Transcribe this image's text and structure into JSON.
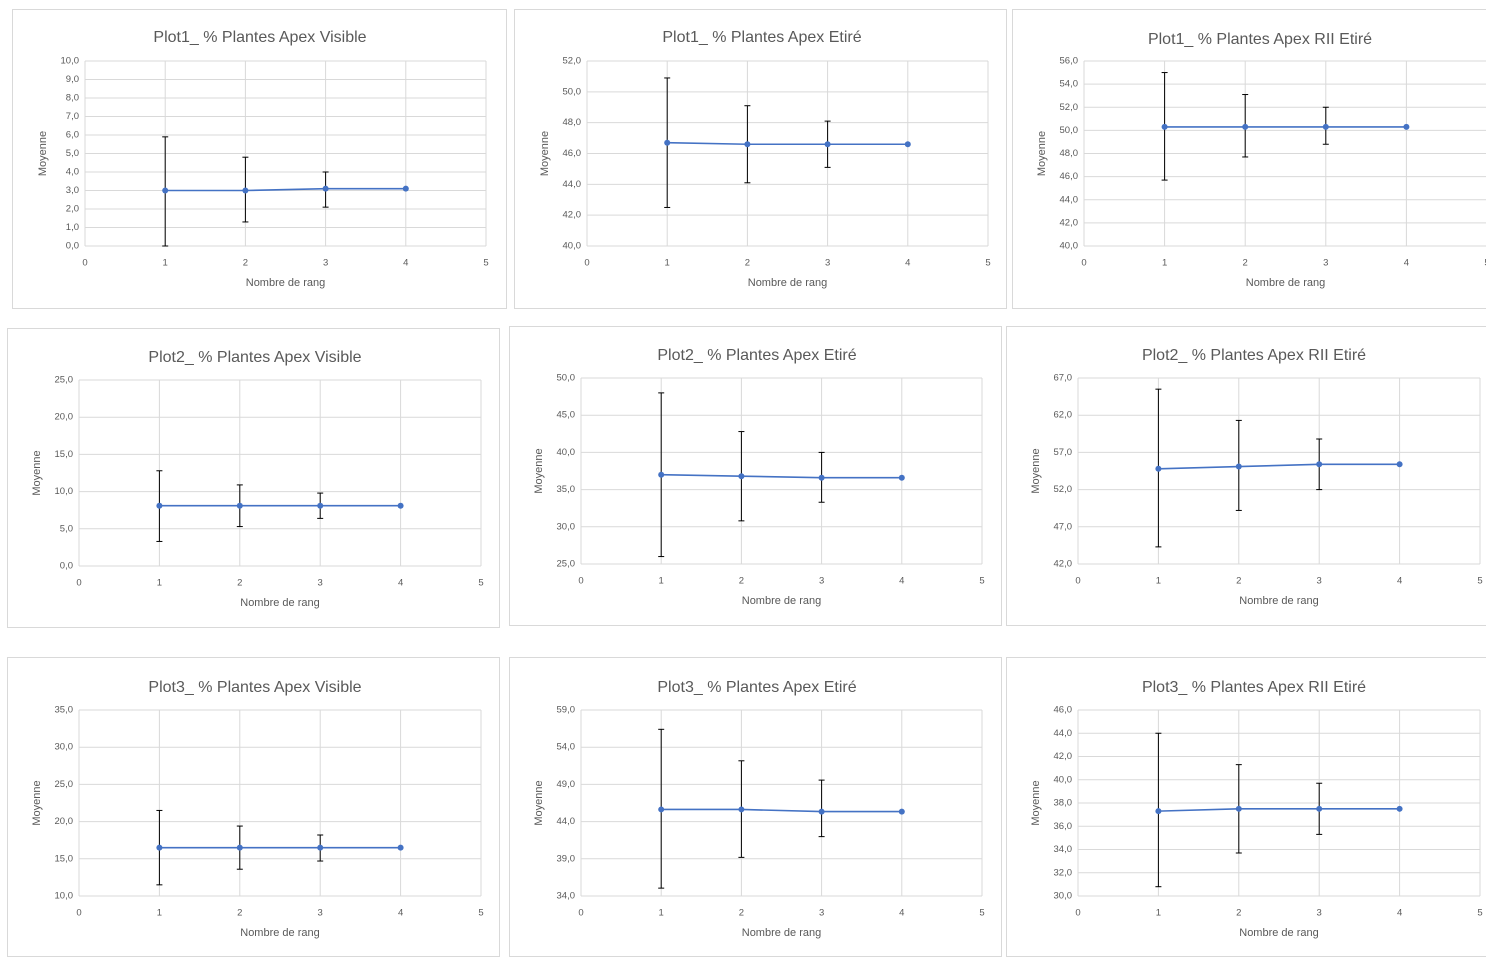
{
  "chart_data": [
    {
      "type": "line",
      "title": "Plot1_ % Plantes Apex Visible",
      "xlabel": "Nombre de rang",
      "ylabel": "Moyenne",
      "xlim": [
        0,
        5
      ],
      "xticks": [
        0,
        1,
        2,
        3,
        4,
        5
      ],
      "ylim": [
        0,
        10
      ],
      "yticks": [
        "0,0",
        "1,0",
        "2,0",
        "3,0",
        "4,0",
        "5,0",
        "6,0",
        "7,0",
        "8,0",
        "9,0",
        "10,0"
      ],
      "x": [
        1,
        2,
        3,
        4
      ],
      "y": [
        3.0,
        3.0,
        3.1,
        3.1
      ],
      "error_high": [
        5.9,
        4.8,
        4.0,
        null
      ],
      "error_low": [
        0.0,
        1.3,
        2.1,
        null
      ],
      "grid": true
    },
    {
      "type": "line",
      "title": "Plot1_ % Plantes Apex Etiré",
      "xlabel": "Nombre de rang",
      "ylabel": "Moyenne",
      "xlim": [
        0,
        5
      ],
      "xticks": [
        0,
        1,
        2,
        3,
        4,
        5
      ],
      "ylim": [
        40,
        52
      ],
      "yticks": [
        "40,0",
        "42,0",
        "44,0",
        "46,0",
        "48,0",
        "50,0",
        "52,0"
      ],
      "x": [
        1,
        2,
        3,
        4
      ],
      "y": [
        46.7,
        46.6,
        46.6,
        46.6
      ],
      "error_high": [
        50.9,
        49.1,
        48.1,
        null
      ],
      "error_low": [
        42.5,
        44.1,
        45.1,
        null
      ],
      "grid": true
    },
    {
      "type": "line",
      "title": "Plot1_ % Plantes Apex RII Etiré",
      "xlabel": "Nombre de rang",
      "ylabel": "Moyenne",
      "xlim": [
        0,
        5
      ],
      "xticks": [
        0,
        1,
        2,
        3,
        4,
        5
      ],
      "ylim": [
        40,
        56
      ],
      "yticks": [
        "40,0",
        "42,0",
        "44,0",
        "46,0",
        "48,0",
        "50,0",
        "52,0",
        "54,0",
        "56,0"
      ],
      "x": [
        1,
        2,
        3,
        4
      ],
      "y": [
        50.3,
        50.3,
        50.3,
        50.3
      ],
      "error_high": [
        55.0,
        53.1,
        52.0,
        null
      ],
      "error_low": [
        45.7,
        47.7,
        48.8,
        null
      ],
      "grid": true
    },
    {
      "type": "line",
      "title": "Plot2_ % Plantes Apex Visible",
      "xlabel": "Nombre de rang",
      "ylabel": "Moyenne",
      "xlim": [
        0,
        5
      ],
      "xticks": [
        0,
        1,
        2,
        3,
        4,
        5
      ],
      "ylim": [
        0,
        25
      ],
      "yticks": [
        "0,0",
        "5,0",
        "10,0",
        "15,0",
        "20,0",
        "25,0"
      ],
      "x": [
        1,
        2,
        3,
        4
      ],
      "y": [
        8.1,
        8.1,
        8.1,
        8.1
      ],
      "error_high": [
        12.8,
        10.9,
        9.8,
        null
      ],
      "error_low": [
        3.3,
        5.3,
        6.4,
        null
      ],
      "grid": true
    },
    {
      "type": "line",
      "title": "Plot2_ % Plantes Apex Etiré",
      "xlabel": "Nombre de rang",
      "ylabel": "Moyenne",
      "xlim": [
        0,
        5
      ],
      "xticks": [
        0,
        1,
        2,
        3,
        4,
        5
      ],
      "ylim": [
        25,
        50
      ],
      "yticks": [
        "25,0",
        "30,0",
        "35,0",
        "40,0",
        "45,0",
        "50,0"
      ],
      "x": [
        1,
        2,
        3,
        4
      ],
      "y": [
        37.0,
        36.8,
        36.6,
        36.6
      ],
      "error_high": [
        48.0,
        42.8,
        40.0,
        null
      ],
      "error_low": [
        26.0,
        30.8,
        33.3,
        null
      ],
      "grid": true
    },
    {
      "type": "line",
      "title": "Plot2_ % Plantes Apex RII Etiré",
      "xlabel": "Nombre de rang",
      "ylabel": "Moyenne",
      "xlim": [
        0,
        5
      ],
      "xticks": [
        0,
        1,
        2,
        3,
        4,
        5
      ],
      "ylim": [
        42,
        67
      ],
      "yticks": [
        "42,0",
        "47,0",
        "52,0",
        "57,0",
        "62,0",
        "67,0"
      ],
      "x": [
        1,
        2,
        3,
        4
      ],
      "y": [
        54.8,
        55.1,
        55.4,
        55.4
      ],
      "error_high": [
        65.5,
        61.3,
        58.8,
        null
      ],
      "error_low": [
        44.3,
        49.2,
        52.0,
        null
      ],
      "grid": true
    },
    {
      "type": "line",
      "title": "Plot3_ % Plantes Apex Visible",
      "xlabel": "Nombre de rang",
      "ylabel": "Moyenne",
      "xlim": [
        0,
        5
      ],
      "xticks": [
        0,
        1,
        2,
        3,
        4,
        5
      ],
      "ylim": [
        10,
        35
      ],
      "yticks": [
        "10,0",
        "15,0",
        "20,0",
        "25,0",
        "30,0",
        "35,0"
      ],
      "x": [
        1,
        2,
        3,
        4
      ],
      "y": [
        16.5,
        16.5,
        16.5,
        16.5
      ],
      "error_high": [
        21.5,
        19.4,
        18.2,
        null
      ],
      "error_low": [
        11.5,
        13.6,
        14.7,
        null
      ],
      "grid": true
    },
    {
      "type": "line",
      "title": "Plot3_ % Plantes Apex Etiré",
      "xlabel": "Nombre de rang",
      "ylabel": "Moyenne",
      "xlim": [
        0,
        5
      ],
      "xticks": [
        0,
        1,
        2,
        3,
        4,
        5
      ],
      "ylim": [
        34,
        60
      ],
      "yticks": [
        "34,0",
        "39,0",
        "44,0",
        "49,0",
        "54,0",
        "59,0"
      ],
      "x": [
        1,
        2,
        3,
        4
      ],
      "y": [
        46.1,
        46.1,
        45.8,
        45.8
      ],
      "error_high": [
        57.3,
        52.9,
        50.2,
        null
      ],
      "error_low": [
        35.1,
        39.4,
        42.3,
        null
      ],
      "grid": true
    },
    {
      "type": "line",
      "title": "Plot3_ % Plantes Apex RII Etiré",
      "xlabel": "Nombre de rang",
      "ylabel": "Moyenne",
      "xlim": [
        0,
        5
      ],
      "xticks": [
        0,
        1,
        2,
        3,
        4,
        5
      ],
      "ylim": [
        30,
        46
      ],
      "yticks": [
        "30,0",
        "32,0",
        "34,0",
        "36,0",
        "38,0",
        "40,0",
        "42,0",
        "44,0",
        "46,0"
      ],
      "x": [
        1,
        2,
        3,
        4
      ],
      "y": [
        37.3,
        37.5,
        37.5,
        37.5
      ],
      "error_high": [
        44.0,
        41.3,
        39.7,
        null
      ],
      "error_low": [
        30.8,
        33.7,
        35.3,
        null
      ],
      "grid": true
    }
  ],
  "colors": {
    "series": "#4472c4",
    "error_bar": "#000000",
    "grid": "#d9d9d9",
    "text": "#595959",
    "border": "#d9d9d9"
  }
}
